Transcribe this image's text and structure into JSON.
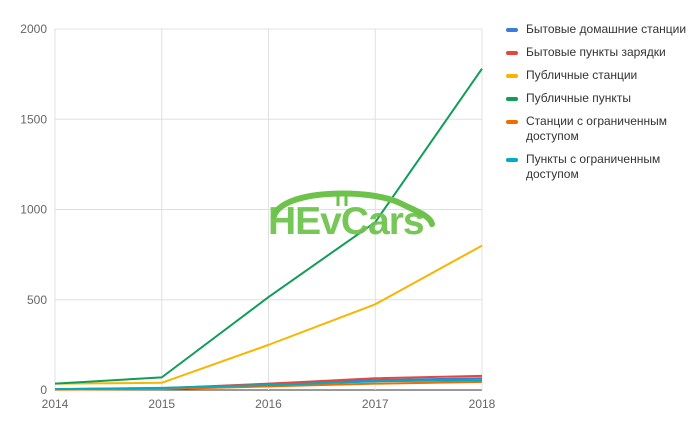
{
  "chart_data": {
    "type": "line",
    "x": [
      2014,
      2015,
      2016,
      2017,
      2018
    ],
    "xlim": [
      2014,
      2018
    ],
    "ylim": [
      0,
      2000
    ],
    "yticks": [
      0,
      500,
      1000,
      1500,
      2000
    ],
    "xticks": [
      2014,
      2015,
      2016,
      2017,
      2018
    ],
    "grid": true,
    "legend_position": "right",
    "series": [
      {
        "name": "Бытовые домашние станции",
        "color": "#3a7fd5",
        "values": [
          5,
          8,
          30,
          55,
          65
        ]
      },
      {
        "name": "Бытовые пункты зарядки",
        "color": "#e8453c",
        "values": [
          5,
          10,
          35,
          65,
          78
        ]
      },
      {
        "name": "Публичные станции",
        "color": "#f9b400",
        "values": [
          35,
          40,
          250,
          475,
          800
        ]
      },
      {
        "name": "Публичные пункты",
        "color": "#0f9d58",
        "values": [
          35,
          70,
          515,
          930,
          1780
        ]
      },
      {
        "name": "Станции с ограниченным доступом",
        "color": "#ef6c00",
        "values": [
          2,
          5,
          20,
          35,
          45
        ]
      },
      {
        "name": "Пункты с ограниченным доступом",
        "color": "#00acc1",
        "values": [
          5,
          12,
          28,
          48,
          55
        ]
      }
    ]
  },
  "watermark": {
    "text": "HEvCars",
    "color": "#6cc24a"
  }
}
